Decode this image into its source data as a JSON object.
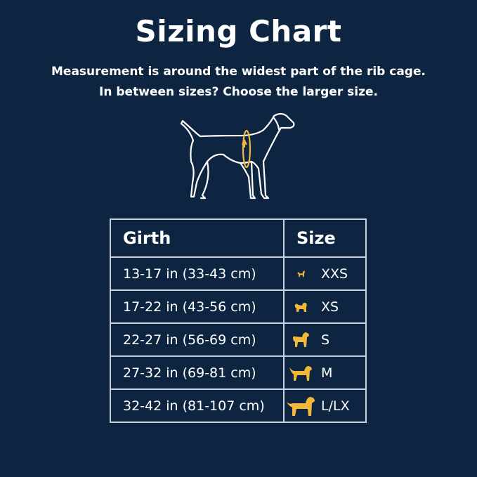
{
  "title": "Sizing Chart",
  "subtitle_lines": [
    "Measurement is around the widest part of the rib cage.",
    "In between sizes? Choose the larger size."
  ],
  "colors": {
    "background": "#0d2540",
    "accent": "#f2b83c",
    "text": "#ffffff"
  },
  "table": {
    "headers": [
      "Girth",
      "Size"
    ],
    "rows": [
      {
        "girth": "13-17 in (33-43 cm)",
        "size": "XXS",
        "icon": "tiny-dog-icon"
      },
      {
        "girth": "17-22 in (43-56 cm)",
        "size": "XS",
        "icon": "small-fluffy-dog-icon"
      },
      {
        "girth": "22-27 in (56-69 cm)",
        "size": "S",
        "icon": "curly-dog-icon"
      },
      {
        "girth": "27-32 in (69-81 cm)",
        "size": "M",
        "icon": "retriever-dog-icon"
      },
      {
        "girth": "32-42 in (81-107 cm)",
        "size": "L/LX",
        "icon": "large-dog-icon"
      }
    ]
  }
}
